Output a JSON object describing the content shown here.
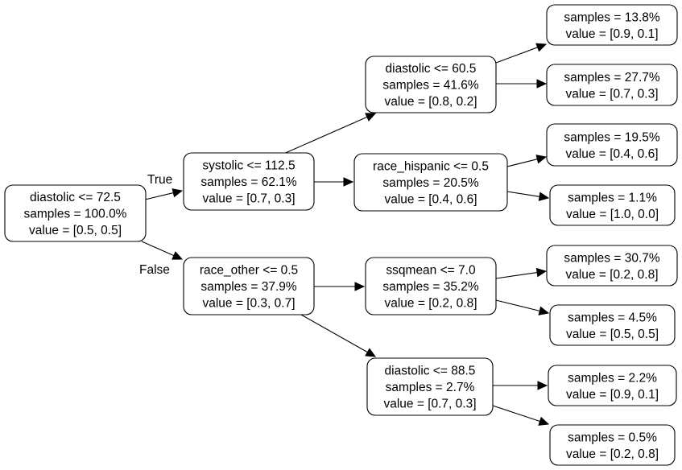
{
  "nodes": [
    {
      "id": "n0",
      "lines": [
        "diastolic <= 72.5",
        "samples = 100.0%",
        "value = [0.5, 0.5]"
      ]
    },
    {
      "id": "n1",
      "lines": [
        "systolic <= 112.5",
        "samples = 62.1%",
        "value = [0.7, 0.3]"
      ]
    },
    {
      "id": "n2",
      "lines": [
        "diastolic <= 60.5",
        "samples = 41.6%",
        "value = [0.8, 0.2]"
      ]
    },
    {
      "id": "n3",
      "lines": [
        "samples = 13.8%",
        "value = [0.9, 0.1]"
      ]
    },
    {
      "id": "n4",
      "lines": [
        "samples = 27.7%",
        "value = [0.7, 0.3]"
      ]
    },
    {
      "id": "n5",
      "lines": [
        "race_hispanic <= 0.5",
        "samples = 20.5%",
        "value = [0.4, 0.6]"
      ]
    },
    {
      "id": "n6",
      "lines": [
        "samples = 19.5%",
        "value = [0.4, 0.6]"
      ]
    },
    {
      "id": "n7",
      "lines": [
        "samples = 1.1%",
        "value = [1.0, 0.0]"
      ]
    },
    {
      "id": "n8",
      "lines": [
        "race_other <= 0.5",
        "samples = 37.9%",
        "value = [0.3, 0.7]"
      ]
    },
    {
      "id": "n9",
      "lines": [
        "ssqmean <= 7.0",
        "samples = 35.2%",
        "value = [0.2, 0.8]"
      ]
    },
    {
      "id": "n10",
      "lines": [
        "samples = 30.7%",
        "value = [0.2, 0.8]"
      ]
    },
    {
      "id": "n11",
      "lines": [
        "samples = 4.5%",
        "value = [0.5, 0.5]"
      ]
    },
    {
      "id": "n12",
      "lines": [
        "diastolic <= 88.5",
        "samples = 2.7%",
        "value = [0.7, 0.3]"
      ]
    },
    {
      "id": "n13",
      "lines": [
        "samples = 2.2%",
        "value = [0.9, 0.1]"
      ]
    },
    {
      "id": "n14",
      "lines": [
        "samples = 0.5%",
        "value = [0.2, 0.8]"
      ]
    }
  ],
  "edges": [
    {
      "from": "n0",
      "to": "n1",
      "label": "True"
    },
    {
      "from": "n0",
      "to": "n8",
      "label": "False"
    },
    {
      "from": "n1",
      "to": "n2"
    },
    {
      "from": "n1",
      "to": "n5"
    },
    {
      "from": "n2",
      "to": "n3"
    },
    {
      "from": "n2",
      "to": "n4"
    },
    {
      "from": "n5",
      "to": "n6"
    },
    {
      "from": "n5",
      "to": "n7"
    },
    {
      "from": "n8",
      "to": "n9"
    },
    {
      "from": "n8",
      "to": "n12"
    },
    {
      "from": "n9",
      "to": "n10"
    },
    {
      "from": "n9",
      "to": "n11"
    },
    {
      "from": "n12",
      "to": "n13"
    },
    {
      "from": "n12",
      "to": "n14"
    }
  ]
}
